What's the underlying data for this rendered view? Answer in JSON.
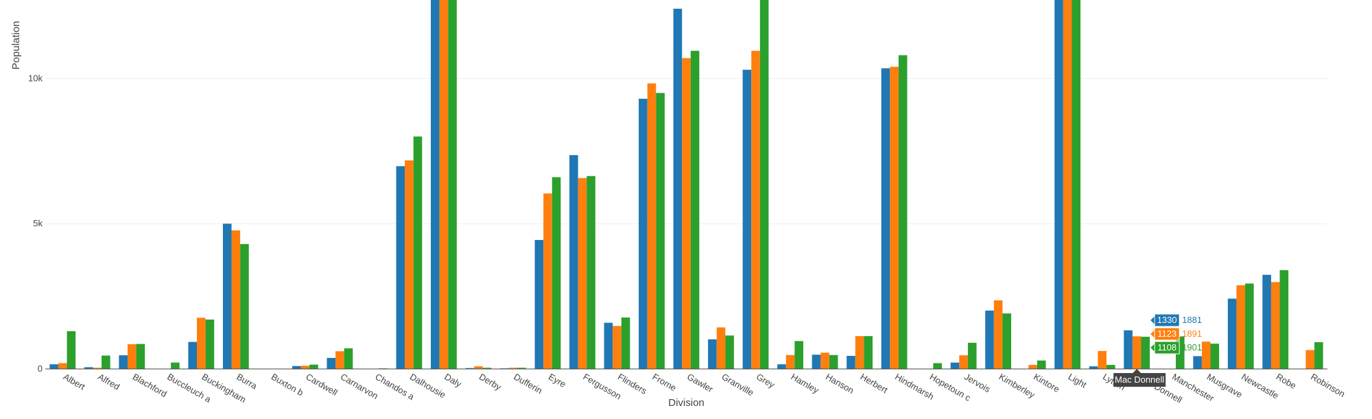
{
  "chart_data": {
    "type": "bar",
    "xlabel": "Division",
    "ylabel": "Population",
    "ylim": [
      0,
      12700
    ],
    "yticks": [
      0,
      5000,
      10000
    ],
    "ytick_labels": [
      "0",
      "5k",
      "10k"
    ],
    "grid": true,
    "colors": [
      "#1f77b4",
      "#ff7f0e",
      "#2ca02c"
    ],
    "categories": [
      "Albert",
      "Alfred",
      "Blachford",
      "Buccleuch a",
      "Buckingham",
      "Burra",
      "Buxton b",
      "Cardwell",
      "Carnarvon",
      "Chandos a",
      "Dalhousie",
      "Daly",
      "Derby",
      "Dufferin",
      "Eyre",
      "Fergusson",
      "Flinders",
      "Frome",
      "Gawler",
      "Granville",
      "Grey",
      "Hamley",
      "Hanson",
      "Herbert",
      "Hindmarsh",
      "Hopetoun c",
      "Jervois",
      "Kimberley",
      "Kintore",
      "Light",
      "Lytton",
      "Mac Donnell",
      "Manchester",
      "Musgrave",
      "Newcastle",
      "Robe",
      "Robinson"
    ],
    "series": [
      {
        "name": "1881",
        "values": [
          160,
          60,
          470,
          0,
          930,
          5000,
          0,
          100,
          380,
          0,
          6980,
          14000,
          30,
          20,
          4440,
          7360,
          1590,
          9300,
          12400,
          1020,
          10300,
          160,
          490,
          450,
          10350,
          0,
          220,
          2010,
          0,
          14000,
          90,
          1330,
          0,
          440,
          2420,
          3240,
          0
        ]
      },
      {
        "name": "1891",
        "values": [
          200,
          40,
          850,
          0,
          1760,
          4770,
          0,
          110,
          610,
          0,
          7180,
          14000,
          90,
          40,
          6040,
          6570,
          1480,
          9830,
          10700,
          1430,
          10950,
          480,
          560,
          1130,
          10400,
          0,
          470,
          2360,
          140,
          14000,
          620,
          1123,
          0,
          940,
          2880,
          2990,
          650
        ]
      },
      {
        "name": "1901",
        "values": [
          1300,
          460,
          860,
          220,
          1700,
          4300,
          0,
          150,
          710,
          20,
          8000,
          14000,
          40,
          40,
          6600,
          6640,
          1770,
          9500,
          10950,
          1150,
          13000,
          960,
          480,
          1130,
          10800,
          200,
          900,
          1910,
          290,
          14000,
          140,
          1108,
          1120,
          870,
          2940,
          3400,
          920
        ]
      }
    ],
    "hover": {
      "category": "Mac Donnell",
      "items": [
        {
          "value": "1330",
          "series": "1881"
        },
        {
          "value": "1123",
          "series": "1891"
        },
        {
          "value": "1108",
          "series": "1901"
        }
      ]
    }
  }
}
